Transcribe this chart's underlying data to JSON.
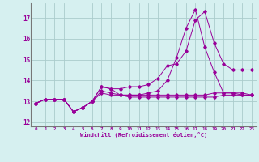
{
  "x": [
    0,
    1,
    2,
    3,
    4,
    5,
    6,
    7,
    8,
    9,
    10,
    11,
    12,
    13,
    14,
    15,
    16,
    17,
    18,
    19,
    20,
    21,
    22,
    23
  ],
  "line1": [
    12.9,
    13.1,
    13.1,
    13.1,
    12.5,
    12.7,
    13.0,
    13.7,
    13.6,
    13.6,
    13.7,
    13.7,
    13.8,
    14.1,
    14.7,
    14.8,
    15.4,
    16.9,
    17.3,
    15.8,
    14.8,
    14.5,
    14.5,
    14.5
  ],
  "line2": [
    12.9,
    13.1,
    13.1,
    13.1,
    12.5,
    12.7,
    13.0,
    13.7,
    13.6,
    13.3,
    13.3,
    13.3,
    13.4,
    13.5,
    14.0,
    15.1,
    16.5,
    17.4,
    15.6,
    14.4,
    13.4,
    13.4,
    13.4,
    13.3
  ],
  "line3": [
    12.9,
    13.1,
    13.1,
    13.1,
    12.5,
    12.7,
    13.0,
    13.5,
    13.4,
    13.3,
    13.2,
    13.2,
    13.2,
    13.2,
    13.2,
    13.2,
    13.2,
    13.2,
    13.2,
    13.2,
    13.3,
    13.3,
    13.3,
    13.3
  ],
  "line4": [
    12.9,
    13.1,
    13.1,
    13.1,
    12.5,
    12.7,
    13.0,
    13.4,
    13.3,
    13.3,
    13.3,
    13.3,
    13.3,
    13.3,
    13.3,
    13.3,
    13.3,
    13.3,
    13.3,
    13.4,
    13.4,
    13.4,
    13.3,
    13.3
  ],
  "line_color": "#990099",
  "bg_color": "#d6f0f0",
  "grid_color": "#aacccc",
  "ylabel_ticks": [
    12,
    13,
    14,
    15,
    16,
    17
  ],
  "xlabel": "Windchill (Refroidissement éolien,°C)",
  "ylim": [
    11.8,
    17.7
  ],
  "xlim": [
    -0.5,
    23.5
  ]
}
